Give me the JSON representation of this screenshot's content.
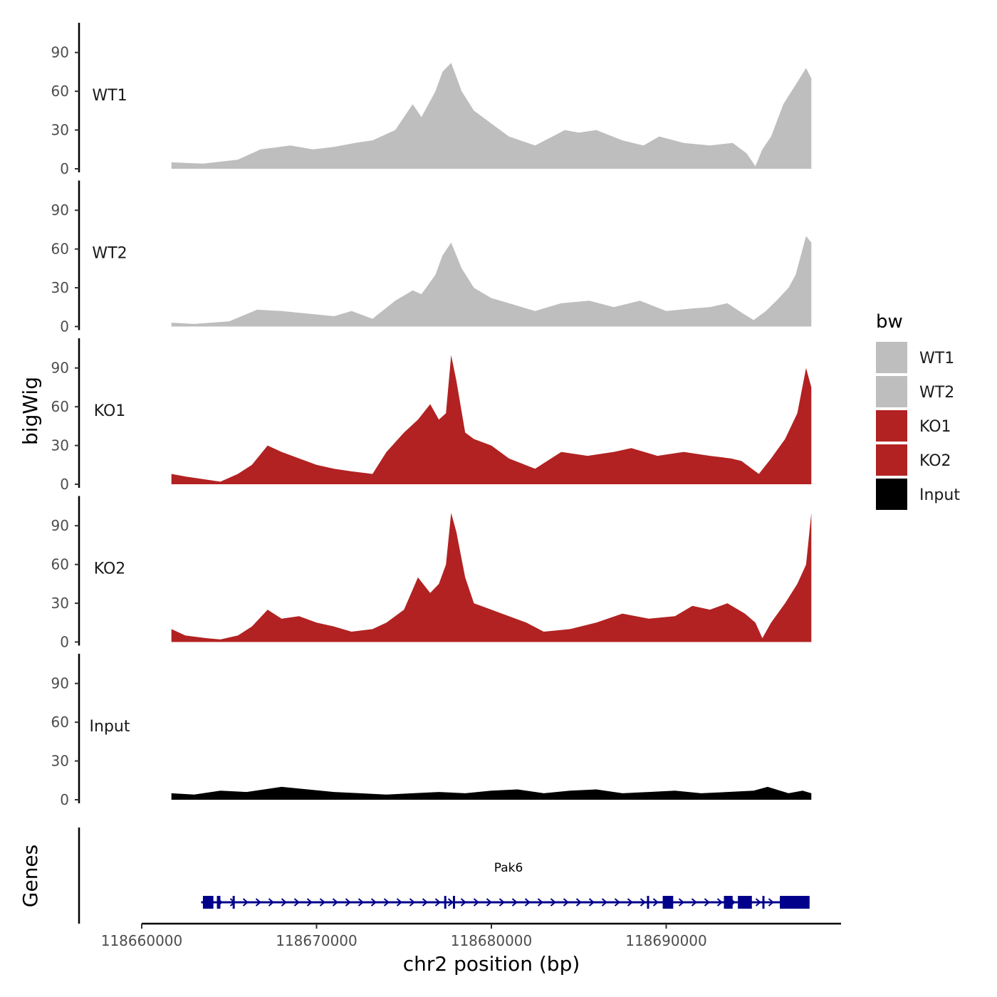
{
  "chart_data": {
    "type": "area",
    "ylabel": "bigWig",
    "xlabel": "chr2 position (bp)",
    "x_ticks": [
      118660000,
      118670000,
      118680000,
      118690000
    ],
    "x_tick_labels": [
      "118660000",
      "118670000",
      "118680000",
      "118690000"
    ],
    "xlim": [
      118660000,
      118700000
    ],
    "region": [
      118661700,
      118698300
    ],
    "ylim": [
      0,
      113
    ],
    "y_ticks": [
      0,
      30,
      60,
      90
    ],
    "y_tick_labels": [
      "0",
      "30",
      "60",
      "90"
    ],
    "legend": {
      "title": "bw",
      "position": "right",
      "entries": [
        {
          "label": "WT1",
          "color": "#bebebe"
        },
        {
          "label": "WT2",
          "color": "#bebebe"
        },
        {
          "label": "KO1",
          "color": "#b22222"
        },
        {
          "label": "KO2",
          "color": "#b22222"
        },
        {
          "label": "Input",
          "color": "#000000"
        }
      ]
    },
    "series": [
      {
        "name": "WT1",
        "color": "#bebebe",
        "x": [
          118661700,
          118663500,
          118665500,
          118666800,
          118668500,
          118669800,
          118671000,
          118672200,
          118673200,
          118674500,
          118675500,
          118676000,
          118676800,
          118677200,
          118677700,
          118678300,
          118679000,
          118680000,
          118681000,
          118682500,
          118683500,
          118684200,
          118685000,
          118686000,
          118687500,
          118688700,
          118689600,
          118691000,
          118692500,
          118693800,
          118694600,
          118695100,
          118695500,
          118696000,
          118696700,
          118697400,
          118698000,
          118698300
        ],
        "values": [
          5,
          4,
          7,
          15,
          18,
          15,
          17,
          20,
          22,
          30,
          50,
          40,
          60,
          75,
          82,
          60,
          45,
          35,
          25,
          18,
          25,
          30,
          28,
          30,
          22,
          18,
          25,
          20,
          18,
          20,
          12,
          2,
          15,
          25,
          50,
          65,
          78,
          70
        ]
      },
      {
        "name": "WT2",
        "color": "#bebebe",
        "x": [
          118661700,
          118663000,
          118665000,
          118666600,
          118668000,
          118669500,
          118671000,
          118672000,
          118673200,
          118674500,
          118675500,
          118676000,
          118676800,
          118677200,
          118677700,
          118678300,
          118679000,
          118680000,
          118681000,
          118682500,
          118684000,
          118685600,
          118687000,
          118688500,
          118690000,
          118691500,
          118692500,
          118693500,
          118694400,
          118695000,
          118695700,
          118696300,
          118697000,
          118697400,
          118698000,
          118698300
        ],
        "values": [
          3,
          2,
          4,
          13,
          12,
          10,
          8,
          12,
          6,
          20,
          28,
          25,
          40,
          55,
          65,
          45,
          30,
          22,
          18,
          12,
          18,
          20,
          15,
          20,
          12,
          14,
          15,
          18,
          10,
          5,
          12,
          20,
          30,
          40,
          70,
          65
        ]
      },
      {
        "name": "KO1",
        "color": "#b22222",
        "x": [
          118661700,
          118662500,
          118663500,
          118664500,
          118665500,
          118666300,
          118667200,
          118668000,
          118669000,
          118670000,
          118671000,
          118672000,
          118673200,
          118674000,
          118675000,
          118675800,
          118676500,
          118677000,
          118677400,
          118677700,
          118678000,
          118678500,
          118679000,
          118680000,
          118681000,
          118682500,
          118684000,
          118685500,
          118687000,
          118688000,
          118689500,
          118691000,
          118692500,
          118693700,
          118694300,
          118694900,
          118695300,
          118696000,
          118696800,
          118697500,
          118698000,
          118698300
        ],
        "values": [
          8,
          6,
          4,
          2,
          8,
          15,
          30,
          25,
          20,
          15,
          12,
          10,
          8,
          25,
          40,
          50,
          62,
          50,
          55,
          100,
          80,
          40,
          35,
          30,
          20,
          12,
          25,
          22,
          25,
          28,
          22,
          25,
          22,
          20,
          18,
          12,
          8,
          20,
          35,
          55,
          90,
          75
        ]
      },
      {
        "name": "KO2",
        "color": "#b22222",
        "x": [
          118661700,
          118662500,
          118663700,
          118664500,
          118665500,
          118666300,
          118667200,
          118668000,
          118669000,
          118670000,
          118671000,
          118672000,
          118673200,
          118674000,
          118675000,
          118675800,
          118676500,
          118677000,
          118677400,
          118677700,
          118678000,
          118678500,
          118679000,
          118680000,
          118681000,
          118682000,
          118683000,
          118684500,
          118686000,
          118687500,
          118689000,
          118690500,
          118691500,
          118692500,
          118693500,
          118694500,
          118695100,
          118695500,
          118696000,
          118696800,
          118697500,
          118698000,
          118698300
        ],
        "values": [
          10,
          5,
          3,
          2,
          5,
          12,
          25,
          18,
          20,
          15,
          12,
          8,
          10,
          15,
          25,
          50,
          38,
          45,
          60,
          100,
          85,
          50,
          30,
          25,
          20,
          15,
          8,
          10,
          15,
          22,
          18,
          20,
          28,
          25,
          30,
          22,
          15,
          3,
          15,
          30,
          45,
          60,
          100
        ]
      },
      {
        "name": "Input",
        "color": "#000000",
        "x": [
          118661700,
          118663000,
          118664500,
          118666000,
          118668000,
          118669500,
          118671000,
          118672500,
          118674000,
          118675500,
          118677000,
          118678500,
          118680000,
          118681500,
          118683000,
          118684500,
          118686000,
          118687500,
          118689000,
          118690500,
          118692000,
          118693500,
          118695000,
          118695800,
          118697000,
          118697800,
          118698300
        ],
        "values": [
          5,
          4,
          7,
          6,
          10,
          8,
          6,
          5,
          4,
          5,
          6,
          5,
          7,
          8,
          5,
          7,
          8,
          5,
          6,
          7,
          5,
          6,
          7,
          10,
          5,
          7,
          5
        ]
      }
    ],
    "genes": {
      "title": "Genes",
      "gene_name": "Pak6",
      "color": "#00008b",
      "start": 118663400,
      "end": 118698200,
      "exons": [
        [
          118663500,
          118664100
        ],
        [
          118664300,
          118664500
        ],
        [
          118665200,
          118665300
        ],
        [
          118677300,
          118677400
        ],
        [
          118677800,
          118677900
        ],
        [
          118688900,
          118689000
        ],
        [
          118689800,
          118690400
        ],
        [
          118693300,
          118693800
        ],
        [
          118694100,
          118694900
        ],
        [
          118695500,
          118695600
        ],
        [
          118696500,
          118698200
        ]
      ]
    }
  }
}
